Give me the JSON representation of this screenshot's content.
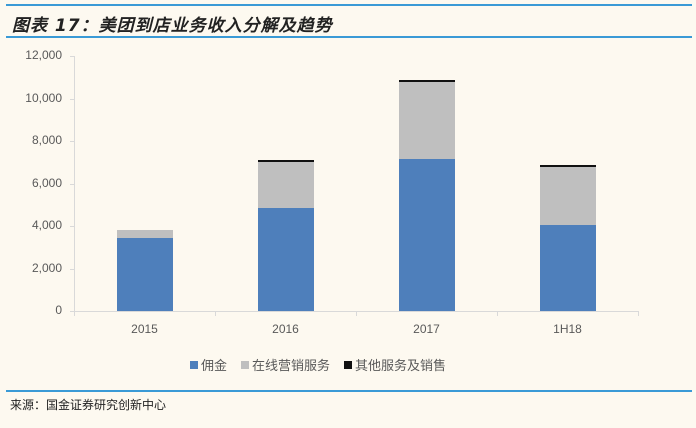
{
  "header": {
    "title": "图表 17：美团到店业务收入分解及趋势"
  },
  "footer": {
    "source": "来源：国金证券研究创新中心"
  },
  "colors": {
    "commission": "#4e7fbb",
    "online_marketing": "#bfbfbf",
    "other": "#111111",
    "rule": "#3a9ad6"
  },
  "chart_data": {
    "type": "bar",
    "stacked": true,
    "title": "美团到店业务收入分解及趋势",
    "xlabel": "",
    "ylabel": "",
    "categories": [
      "2015",
      "2016",
      "2017",
      "1H18"
    ],
    "series": [
      {
        "name": "佣金",
        "values": [
          3430,
          4850,
          7150,
          4050
        ]
      },
      {
        "name": "在线营销服务",
        "values": [
          370,
          2150,
          3650,
          2750
        ]
      },
      {
        "name": "其他服务及销售",
        "values": [
          0,
          50,
          60,
          20
        ]
      }
    ],
    "ylim": [
      0,
      12000
    ],
    "yticks": [
      "0",
      "2,000",
      "4,000",
      "6,000",
      "8,000",
      "10,000",
      "12,000"
    ],
    "grid": false,
    "legend_position": "bottom"
  }
}
